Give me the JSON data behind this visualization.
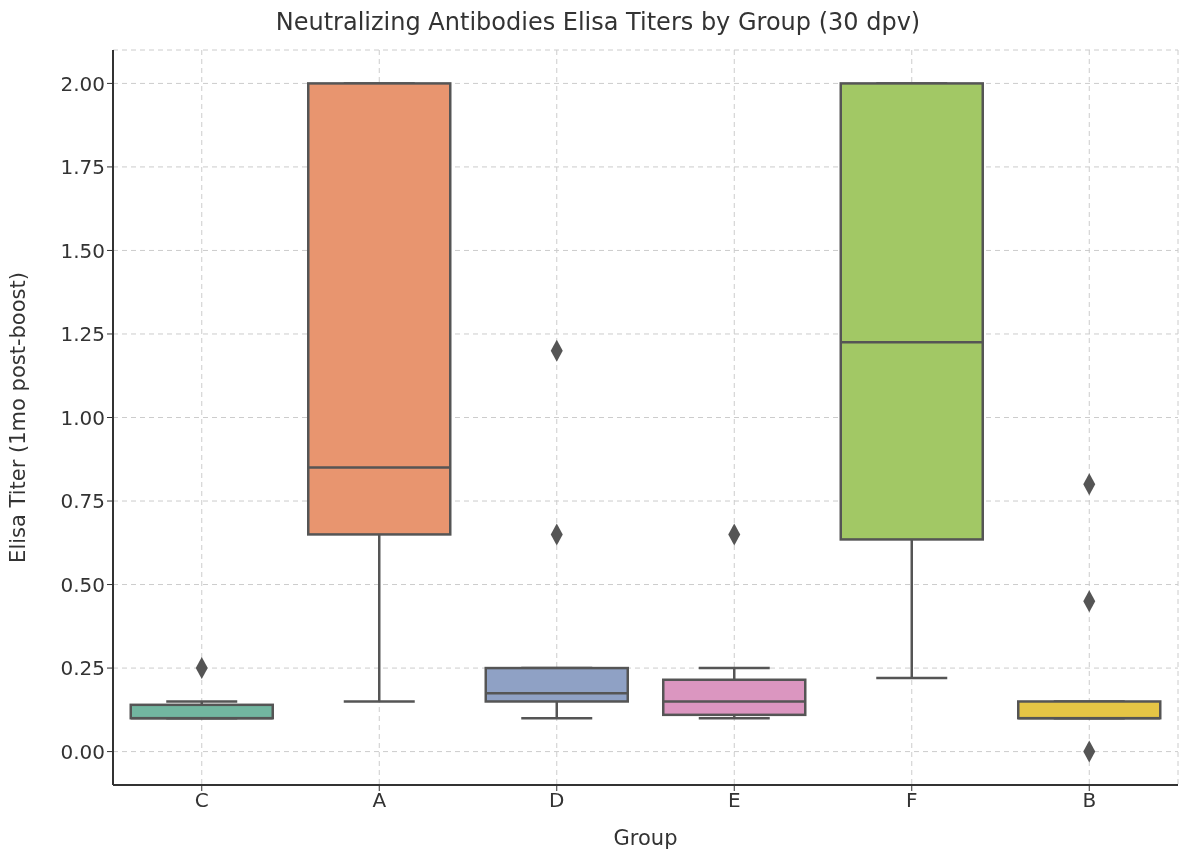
{
  "chart_data": {
    "type": "box",
    "title": "Neutralizing Antibodies Elisa Titers by Group (30 dpv)",
    "xlabel": "Group",
    "ylabel": "Elisa Titer (1mo post-boost)",
    "categories": [
      "C",
      "A",
      "D",
      "E",
      "F",
      "B"
    ],
    "colors": [
      "#72b6a0",
      "#e8956f",
      "#8fa1c5",
      "#db96c0",
      "#a2c865",
      "#e5c545"
    ],
    "boxes": [
      {
        "low": 0.1,
        "q1": 0.1,
        "median": 0.1,
        "q3": 0.14,
        "high": 0.15,
        "outliers": [
          0.25
        ]
      },
      {
        "low": 0.15,
        "q1": 0.65,
        "median": 0.85,
        "q3": 2.0,
        "high": 2.0
      },
      {
        "low": 0.1,
        "q1": 0.15,
        "median": 0.175,
        "q3": 0.25,
        "high": 0.25,
        "outliers": [
          0.65,
          1.2
        ]
      },
      {
        "low": 0.1,
        "q1": 0.11,
        "median": 0.15,
        "q3": 0.215,
        "high": 0.25,
        "outliers": [
          0.65
        ]
      },
      {
        "low": 0.22,
        "q1": 0.635,
        "median": 1.225,
        "q3": 2.0,
        "high": 2.0
      },
      {
        "low": 0.1,
        "q1": 0.1,
        "median": 0.1,
        "q3": 0.15,
        "high": 0.15,
        "outliers": [
          0.0,
          0.45,
          0.8
        ]
      }
    ],
    "ylim": [
      -0.1,
      2.1
    ],
    "yticks": [
      {
        "value": 0,
        "label": "0.00"
      },
      {
        "value": 0.25,
        "label": "0.25"
      },
      {
        "value": 0.5,
        "label": "0.50"
      },
      {
        "value": 0.75,
        "label": "0.75"
      },
      {
        "value": 1,
        "label": "1.00"
      },
      {
        "value": 1.25,
        "label": "1.25"
      },
      {
        "value": 1.5,
        "label": "1.50"
      },
      {
        "value": 1.75,
        "label": "1.75"
      },
      {
        "value": 2,
        "label": "2.00"
      }
    ],
    "grid": true,
    "marker": "diamond"
  }
}
